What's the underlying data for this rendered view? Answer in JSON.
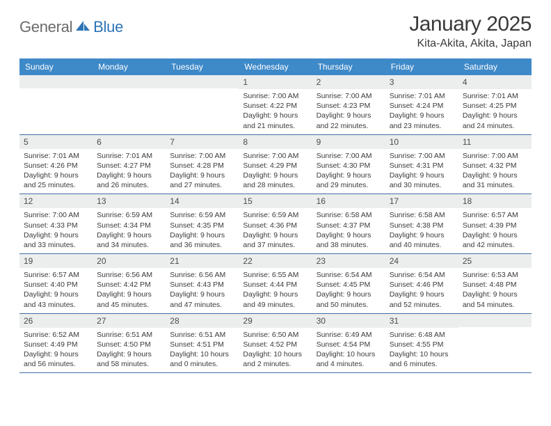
{
  "logo": {
    "part1": "General",
    "part2": "Blue"
  },
  "title": "January 2025",
  "location": "Kita-Akita, Akita, Japan",
  "colors": {
    "header_bg": "#3e89c8",
    "daynum_bg": "#eceded",
    "week_border": "#3e6fa5",
    "logo_gray": "#6a6a6a",
    "logo_blue": "#2d74b6",
    "text": "#3a3a3a"
  },
  "weekdays": [
    "Sunday",
    "Monday",
    "Tuesday",
    "Wednesday",
    "Thursday",
    "Friday",
    "Saturday"
  ],
  "weeks": [
    [
      {
        "n": "",
        "lines": []
      },
      {
        "n": "",
        "lines": []
      },
      {
        "n": "",
        "lines": []
      },
      {
        "n": "1",
        "lines": [
          "Sunrise: 7:00 AM",
          "Sunset: 4:22 PM",
          "Daylight: 9 hours",
          "and 21 minutes."
        ]
      },
      {
        "n": "2",
        "lines": [
          "Sunrise: 7:00 AM",
          "Sunset: 4:23 PM",
          "Daylight: 9 hours",
          "and 22 minutes."
        ]
      },
      {
        "n": "3",
        "lines": [
          "Sunrise: 7:01 AM",
          "Sunset: 4:24 PM",
          "Daylight: 9 hours",
          "and 23 minutes."
        ]
      },
      {
        "n": "4",
        "lines": [
          "Sunrise: 7:01 AM",
          "Sunset: 4:25 PM",
          "Daylight: 9 hours",
          "and 24 minutes."
        ]
      }
    ],
    [
      {
        "n": "5",
        "lines": [
          "Sunrise: 7:01 AM",
          "Sunset: 4:26 PM",
          "Daylight: 9 hours",
          "and 25 minutes."
        ]
      },
      {
        "n": "6",
        "lines": [
          "Sunrise: 7:01 AM",
          "Sunset: 4:27 PM",
          "Daylight: 9 hours",
          "and 26 minutes."
        ]
      },
      {
        "n": "7",
        "lines": [
          "Sunrise: 7:00 AM",
          "Sunset: 4:28 PM",
          "Daylight: 9 hours",
          "and 27 minutes."
        ]
      },
      {
        "n": "8",
        "lines": [
          "Sunrise: 7:00 AM",
          "Sunset: 4:29 PM",
          "Daylight: 9 hours",
          "and 28 minutes."
        ]
      },
      {
        "n": "9",
        "lines": [
          "Sunrise: 7:00 AM",
          "Sunset: 4:30 PM",
          "Daylight: 9 hours",
          "and 29 minutes."
        ]
      },
      {
        "n": "10",
        "lines": [
          "Sunrise: 7:00 AM",
          "Sunset: 4:31 PM",
          "Daylight: 9 hours",
          "and 30 minutes."
        ]
      },
      {
        "n": "11",
        "lines": [
          "Sunrise: 7:00 AM",
          "Sunset: 4:32 PM",
          "Daylight: 9 hours",
          "and 31 minutes."
        ]
      }
    ],
    [
      {
        "n": "12",
        "lines": [
          "Sunrise: 7:00 AM",
          "Sunset: 4:33 PM",
          "Daylight: 9 hours",
          "and 33 minutes."
        ]
      },
      {
        "n": "13",
        "lines": [
          "Sunrise: 6:59 AM",
          "Sunset: 4:34 PM",
          "Daylight: 9 hours",
          "and 34 minutes."
        ]
      },
      {
        "n": "14",
        "lines": [
          "Sunrise: 6:59 AM",
          "Sunset: 4:35 PM",
          "Daylight: 9 hours",
          "and 36 minutes."
        ]
      },
      {
        "n": "15",
        "lines": [
          "Sunrise: 6:59 AM",
          "Sunset: 4:36 PM",
          "Daylight: 9 hours",
          "and 37 minutes."
        ]
      },
      {
        "n": "16",
        "lines": [
          "Sunrise: 6:58 AM",
          "Sunset: 4:37 PM",
          "Daylight: 9 hours",
          "and 38 minutes."
        ]
      },
      {
        "n": "17",
        "lines": [
          "Sunrise: 6:58 AM",
          "Sunset: 4:38 PM",
          "Daylight: 9 hours",
          "and 40 minutes."
        ]
      },
      {
        "n": "18",
        "lines": [
          "Sunrise: 6:57 AM",
          "Sunset: 4:39 PM",
          "Daylight: 9 hours",
          "and 42 minutes."
        ]
      }
    ],
    [
      {
        "n": "19",
        "lines": [
          "Sunrise: 6:57 AM",
          "Sunset: 4:40 PM",
          "Daylight: 9 hours",
          "and 43 minutes."
        ]
      },
      {
        "n": "20",
        "lines": [
          "Sunrise: 6:56 AM",
          "Sunset: 4:42 PM",
          "Daylight: 9 hours",
          "and 45 minutes."
        ]
      },
      {
        "n": "21",
        "lines": [
          "Sunrise: 6:56 AM",
          "Sunset: 4:43 PM",
          "Daylight: 9 hours",
          "and 47 minutes."
        ]
      },
      {
        "n": "22",
        "lines": [
          "Sunrise: 6:55 AM",
          "Sunset: 4:44 PM",
          "Daylight: 9 hours",
          "and 49 minutes."
        ]
      },
      {
        "n": "23",
        "lines": [
          "Sunrise: 6:54 AM",
          "Sunset: 4:45 PM",
          "Daylight: 9 hours",
          "and 50 minutes."
        ]
      },
      {
        "n": "24",
        "lines": [
          "Sunrise: 6:54 AM",
          "Sunset: 4:46 PM",
          "Daylight: 9 hours",
          "and 52 minutes."
        ]
      },
      {
        "n": "25",
        "lines": [
          "Sunrise: 6:53 AM",
          "Sunset: 4:48 PM",
          "Daylight: 9 hours",
          "and 54 minutes."
        ]
      }
    ],
    [
      {
        "n": "26",
        "lines": [
          "Sunrise: 6:52 AM",
          "Sunset: 4:49 PM",
          "Daylight: 9 hours",
          "and 56 minutes."
        ]
      },
      {
        "n": "27",
        "lines": [
          "Sunrise: 6:51 AM",
          "Sunset: 4:50 PM",
          "Daylight: 9 hours",
          "and 58 minutes."
        ]
      },
      {
        "n": "28",
        "lines": [
          "Sunrise: 6:51 AM",
          "Sunset: 4:51 PM",
          "Daylight: 10 hours",
          "and 0 minutes."
        ]
      },
      {
        "n": "29",
        "lines": [
          "Sunrise: 6:50 AM",
          "Sunset: 4:52 PM",
          "Daylight: 10 hours",
          "and 2 minutes."
        ]
      },
      {
        "n": "30",
        "lines": [
          "Sunrise: 6:49 AM",
          "Sunset: 4:54 PM",
          "Daylight: 10 hours",
          "and 4 minutes."
        ]
      },
      {
        "n": "31",
        "lines": [
          "Sunrise: 6:48 AM",
          "Sunset: 4:55 PM",
          "Daylight: 10 hours",
          "and 6 minutes."
        ]
      },
      {
        "n": "",
        "lines": []
      }
    ]
  ]
}
